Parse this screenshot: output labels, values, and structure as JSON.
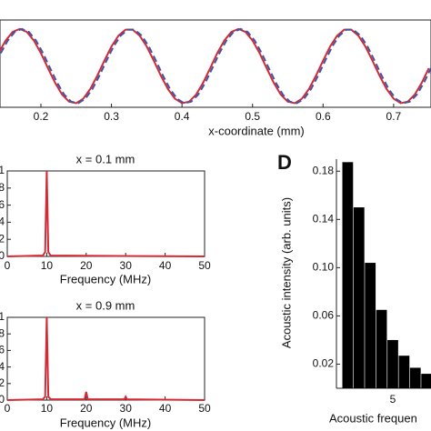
{
  "chart_data": [
    {
      "type": "line",
      "xlabel": "x-coordinate (mm)",
      "x": [
        0.14,
        0.15,
        0.16,
        0.17,
        0.18,
        0.19,
        0.2,
        0.21,
        0.22,
        0.23,
        0.24,
        0.25,
        0.26,
        0.27,
        0.28,
        0.29,
        0.3,
        0.31,
        0.32,
        0.33,
        0.34,
        0.35,
        0.36,
        0.37,
        0.38,
        0.39,
        0.4,
        0.41,
        0.42,
        0.43,
        0.44,
        0.45,
        0.46,
        0.47,
        0.48,
        0.49,
        0.5,
        0.51,
        0.52,
        0.53,
        0.54,
        0.55,
        0.56,
        0.57,
        0.58,
        0.59,
        0.6,
        0.61,
        0.62,
        0.63,
        0.64,
        0.65,
        0.66,
        0.67,
        0.68,
        0.69,
        0.7,
        0.71,
        0.72,
        0.73,
        0.74,
        0.75
      ],
      "series": [
        {
          "color": "#d42a35",
          "style": "solid",
          "values": [
            0.35,
            0.69,
            0.92,
            1,
            0.92,
            0.69,
            0.35,
            -0.05,
            -0.44,
            -0.76,
            -0.95,
            -0.99,
            -0.87,
            -0.61,
            -0.25,
            0.15,
            0.53,
            0.82,
            0.98,
            0.98,
            0.82,
            0.53,
            0.15,
            -0.25,
            -0.61,
            -0.87,
            -0.99,
            -0.95,
            -0.76,
            -0.44,
            -0.05,
            0.35,
            0.69,
            0.92,
            1,
            0.92,
            0.69,
            0.35,
            -0.05,
            -0.44,
            -0.76,
            -0.95,
            -0.99,
            -0.87,
            -0.61,
            -0.25,
            0.15,
            0.53,
            0.82,
            0.98,
            0.98,
            0.82,
            0.53,
            0.15,
            -0.25,
            -0.61,
            -0.87,
            -0.99,
            -0.95,
            -0.76,
            -0.44,
            -0.05
          ]
        },
        {
          "color": "#3e55a8",
          "style": "dashed",
          "x": [
            0.143,
            0.153,
            0.163,
            0.173,
            0.183,
            0.193,
            0.203,
            0.213,
            0.223,
            0.233,
            0.243,
            0.253,
            0.263,
            0.273,
            0.283,
            0.293,
            0.303,
            0.313,
            0.323,
            0.333,
            0.343,
            0.353,
            0.363,
            0.373,
            0.383,
            0.393,
            0.403,
            0.413,
            0.423,
            0.433,
            0.443,
            0.453,
            0.463,
            0.473,
            0.483,
            0.493,
            0.503,
            0.513,
            0.523,
            0.533,
            0.543,
            0.553,
            0.563,
            0.573,
            0.583,
            0.593,
            0.603,
            0.613,
            0.623,
            0.633,
            0.643,
            0.653,
            0.663,
            0.673,
            0.683,
            0.693,
            0.703,
            0.713,
            0.723,
            0.733,
            0.743,
            0.753
          ],
          "values": [
            0.35,
            0.69,
            0.92,
            1,
            0.92,
            0.69,
            0.35,
            -0.05,
            -0.44,
            -0.76,
            -0.95,
            -0.99,
            -0.87,
            -0.61,
            -0.25,
            0.15,
            0.53,
            0.82,
            0.98,
            0.98,
            0.82,
            0.53,
            0.15,
            -0.25,
            -0.61,
            -0.87,
            -0.99,
            -0.95,
            -0.76,
            -0.44,
            -0.05,
            0.35,
            0.69,
            0.92,
            1,
            0.92,
            0.69,
            0.35,
            -0.05,
            -0.44,
            -0.76,
            -0.95,
            -0.99,
            -0.87,
            -0.61,
            -0.25,
            0.15,
            0.53,
            0.82,
            0.98,
            0.98,
            0.82,
            0.53,
            0.15,
            -0.25,
            -0.61,
            -0.87,
            -0.99,
            -0.95,
            -0.76,
            -0.44,
            -0.05
          ]
        }
      ],
      "xlim": [
        0.142,
        0.753
      ],
      "ylim": [
        -1.1,
        1.24
      ],
      "xticks": [
        0.2,
        0.3,
        0.4,
        0.5,
        0.6,
        0.7
      ]
    },
    {
      "type": "line",
      "title": "x = 0.1 mm",
      "xlabel": "Frequency (MHz)",
      "x": [
        0,
        9,
        9.6,
        10,
        10.4,
        11,
        50
      ],
      "series": [
        {
          "color": "#d42a35",
          "style": "solid",
          "values": [
            0,
            0.01,
            0.05,
            1,
            0.05,
            0.01,
            0
          ]
        }
      ],
      "xlim": [
        0,
        50
      ],
      "ylim": [
        0,
        1
      ],
      "xticks": [
        0,
        10,
        20,
        30,
        40,
        50
      ],
      "yticks": [
        0,
        {
          "value": 0.2,
          "label": "2"
        },
        {
          "value": 0.4,
          "label": "4"
        },
        {
          "value": 0.6,
          "label": "6"
        },
        {
          "value": 0.8,
          "label": "8"
        },
        1
      ]
    },
    {
      "type": "line",
      "title": "x = 0.9 mm",
      "xlabel": "Frequency (MHz)",
      "x": [
        0,
        9,
        9.6,
        10,
        10.4,
        11,
        19.6,
        20,
        20.4,
        29.7,
        30,
        30.3,
        50
      ],
      "series": [
        {
          "color": "#d42a35",
          "style": "solid",
          "values": [
            0,
            0.01,
            0.04,
            1,
            0.04,
            0.01,
            0.01,
            0.1,
            0.01,
            0.01,
            0.04,
            0.01,
            0
          ]
        }
      ],
      "xlim": [
        0,
        50
      ],
      "ylim": [
        0,
        1
      ],
      "xticks": [
        0,
        10,
        20,
        30,
        40,
        50
      ],
      "yticks": [
        0,
        {
          "value": 0.2,
          "label": "2"
        },
        {
          "value": 0.4,
          "label": "4"
        },
        {
          "value": 0.6,
          "label": "6"
        },
        {
          "value": 0.8,
          "label": "8"
        },
        1
      ]
    },
    {
      "type": "bar",
      "panel": "D",
      "xlabel": "Acoustic frequen",
      "ylabel": "Acoustic intensity (arb. units)",
      "x": [
        1,
        2,
        3,
        4,
        5,
        6,
        7,
        8
      ],
      "values": [
        0.1875,
        0.15,
        0.104,
        0.065,
        0.04,
        0.027,
        0.017,
        0.012
      ],
      "color": "#000000",
      "xlim": [
        0,
        8.39
      ],
      "ylim": [
        0,
        0.19
      ],
      "xticks": [
        5
      ],
      "yticks": [
        0.02,
        0.06,
        {
          "value": 0.1,
          "label": "0.10"
        },
        0.14,
        0.18
      ]
    }
  ]
}
